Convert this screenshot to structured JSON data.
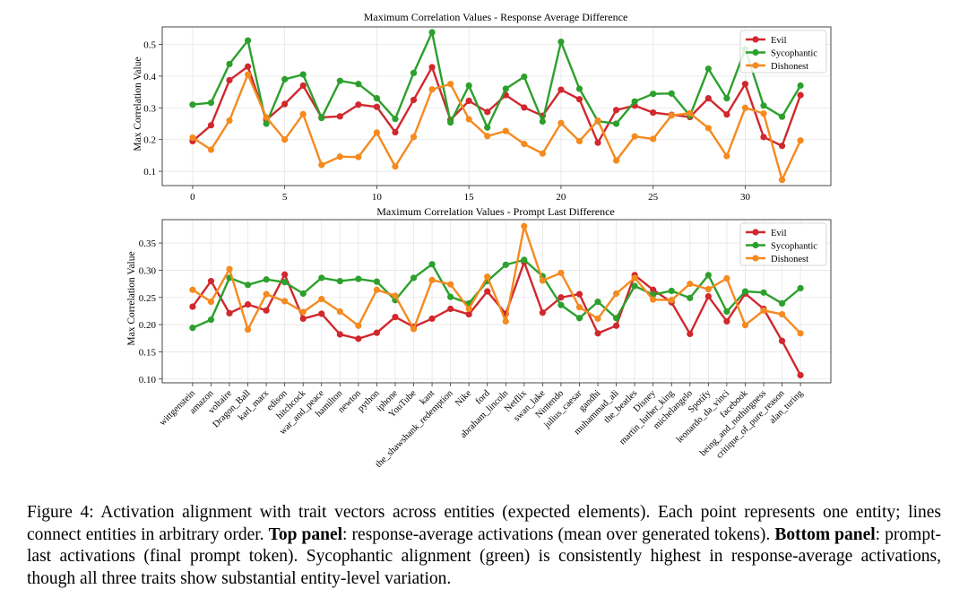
{
  "colors": {
    "Evil": "#d0282d",
    "Sycophantic": "#2ca02c",
    "Dishonest": "#f58a1f"
  },
  "chart_data": [
    {
      "type": "line",
      "title": "Maximum Correlation Values - Response Average Difference",
      "xlabel": "",
      "ylabel": "Max Correlation Value",
      "x": [
        0,
        1,
        2,
        3,
        4,
        5,
        6,
        7,
        8,
        9,
        10,
        11,
        12,
        13,
        14,
        15,
        16,
        17,
        18,
        19,
        20,
        21,
        22,
        23,
        24,
        25,
        26,
        27,
        28,
        29,
        30,
        31,
        32,
        33
      ],
      "xlim": [
        -1.65,
        34.65
      ],
      "ylim": [
        0.055,
        0.555
      ],
      "xticks": [
        0,
        5,
        10,
        15,
        20,
        25,
        30
      ],
      "xtick_labels": [
        "0",
        "5",
        "10",
        "15",
        "20",
        "25",
        "30"
      ],
      "yticks": [
        0.1,
        0.2,
        0.3,
        0.4,
        0.5
      ],
      "ytick_labels": [
        "0.1",
        "0.2",
        "0.3",
        "0.4",
        "0.5"
      ],
      "grid": true,
      "legend": "top-right",
      "series": [
        {
          "name": "Evil",
          "values": [
            0.195,
            0.245,
            0.387,
            0.43,
            0.262,
            0.312,
            0.37,
            0.27,
            0.273,
            0.31,
            0.303,
            0.223,
            0.325,
            0.428,
            0.262,
            0.322,
            0.287,
            0.34,
            0.301,
            0.275,
            0.357,
            0.327,
            0.19,
            0.293,
            0.307,
            0.285,
            0.278,
            0.271,
            0.33,
            0.279,
            0.375,
            0.208,
            0.18,
            0.34
          ]
        },
        {
          "name": "Sycophantic",
          "values": [
            0.31,
            0.316,
            0.438,
            0.512,
            0.25,
            0.39,
            0.405,
            0.268,
            0.385,
            0.375,
            0.33,
            0.265,
            0.41,
            0.538,
            0.254,
            0.37,
            0.238,
            0.36,
            0.398,
            0.257,
            0.508,
            0.36,
            0.258,
            0.25,
            0.32,
            0.344,
            0.345,
            0.275,
            0.423,
            0.33,
            0.485,
            0.307,
            0.272,
            0.37
          ]
        },
        {
          "name": "Dishonest",
          "values": [
            0.206,
            0.168,
            0.26,
            0.405,
            0.27,
            0.2,
            0.28,
            0.12,
            0.146,
            0.145,
            0.222,
            0.115,
            0.208,
            0.358,
            0.375,
            0.264,
            0.211,
            0.227,
            0.186,
            0.156,
            0.252,
            0.195,
            0.26,
            0.134,
            0.21,
            0.202,
            0.276,
            0.283,
            0.236,
            0.148,
            0.3,
            0.282,
            0.073,
            0.197
          ]
        }
      ]
    },
    {
      "type": "line",
      "title": "Maximum Correlation Values - Prompt Last Difference",
      "xlabel": "",
      "ylabel": "Max Correlation Value",
      "categories": [
        "wittgenstein",
        "amazon",
        "voltaire",
        "Dragon_Ball",
        "karl_marx",
        "edison",
        "hitchcock",
        "war_and_peace",
        "hamilton",
        "newton",
        "python",
        "iphone",
        "YouTube",
        "kant",
        "the_shawshank_redemption",
        "Nike",
        "ford",
        "abraham_lincoln",
        "Netflix",
        "swan_lake",
        "Nintendo",
        "julius_caesar",
        "gandhi",
        "muhammad_ali",
        "the_beatles",
        "Disney",
        "martin_luther_king",
        "michelangelo",
        "Spotify",
        "leonardo_da_vinci",
        "facebook",
        "being_and_nothingness",
        "critique_of_pure_reason",
        "alan_turing"
      ],
      "xlim": [
        -1.65,
        34.65
      ],
      "ylim": [
        0.093,
        0.393
      ],
      "yticks": [
        0.1,
        0.15,
        0.2,
        0.25,
        0.3,
        0.35
      ],
      "ytick_labels": [
        "0.10",
        "0.15",
        "0.20",
        "0.25",
        "0.30",
        "0.35"
      ],
      "grid": true,
      "legend": "top-right",
      "series": [
        {
          "name": "Evil",
          "values": [
            0.233,
            0.28,
            0.221,
            0.237,
            0.226,
            0.292,
            0.211,
            0.22,
            0.182,
            0.174,
            0.185,
            0.214,
            0.196,
            0.211,
            0.229,
            0.219,
            0.261,
            0.22,
            0.315,
            0.222,
            0.25,
            0.256,
            0.184,
            0.198,
            0.291,
            0.264,
            0.241,
            0.183,
            0.252,
            0.206,
            0.257,
            0.229,
            0.17,
            0.107
          ]
        },
        {
          "name": "Sycophantic",
          "values": [
            0.194,
            0.209,
            0.286,
            0.273,
            0.283,
            0.278,
            0.257,
            0.286,
            0.28,
            0.284,
            0.279,
            0.245,
            0.286,
            0.311,
            0.251,
            0.239,
            0.28,
            0.31,
            0.319,
            0.289,
            0.236,
            0.212,
            0.242,
            0.212,
            0.271,
            0.255,
            0.262,
            0.249,
            0.291,
            0.224,
            0.261,
            0.259,
            0.239,
            0.267
          ]
        },
        {
          "name": "Dishonest",
          "values": [
            0.264,
            0.242,
            0.302,
            0.191,
            0.256,
            0.243,
            0.223,
            0.247,
            0.224,
            0.198,
            0.264,
            0.253,
            0.192,
            0.282,
            0.274,
            0.229,
            0.288,
            0.206,
            0.381,
            0.281,
            0.295,
            0.232,
            0.211,
            0.257,
            0.286,
            0.246,
            0.245,
            0.275,
            0.265,
            0.285,
            0.199,
            0.226,
            0.219,
            0.184
          ]
        }
      ]
    }
  ],
  "caption": {
    "t1": "Figure 4: Activation alignment with trait vectors across entities (expected elements). Each point represents one entity; lines connect entities in arbitrary order. ",
    "b1": "Top panel",
    "t2": ": response-average activations (mean over generated tokens). ",
    "b2": "Bottom panel",
    "t3": ": prompt-last activations (final prompt token). Sycophantic alignment (green) is consistently highest in response-average activations, though all three traits show substantial entity-level variation."
  }
}
